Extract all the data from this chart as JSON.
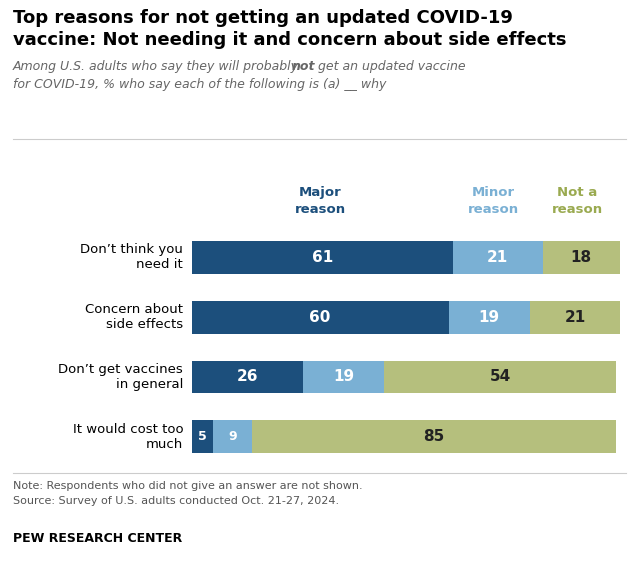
{
  "title_line1": "Top reasons for not getting an updated COVID-19",
  "title_line2": "vaccine: Not needing it and concern about side effects",
  "subtitle_pre": "Among U.S. adults who say they will probably ",
  "subtitle_bold": "not",
  "subtitle_post": " get an updated vaccine",
  "subtitle_line2": "for COVID-19, % who say each of the following is (a) __ why",
  "categories": [
    "Don’t think you\nneed it",
    "Concern about\nside effects",
    "Don’t get vaccines\nin general",
    "It would cost too\nmuch"
  ],
  "major": [
    61,
    60,
    26,
    5
  ],
  "minor": [
    21,
    19,
    19,
    9
  ],
  "not_a_reason": [
    18,
    21,
    54,
    85
  ],
  "color_major": "#1c4f7c",
  "color_minor": "#7ab0d4",
  "color_not": "#b5bf7d",
  "color_major_legend": "#1c4f7c",
  "color_minor_legend": "#7ab0d4",
  "color_not_legend": "#9aaa50",
  "note": "Note: Respondents who did not give an answer are not shown.",
  "source": "Source: Survey of U.S. adults conducted Oct. 21-27, 2024.",
  "footer": "PEW RESEARCH CENTER",
  "background_color": "#ffffff"
}
